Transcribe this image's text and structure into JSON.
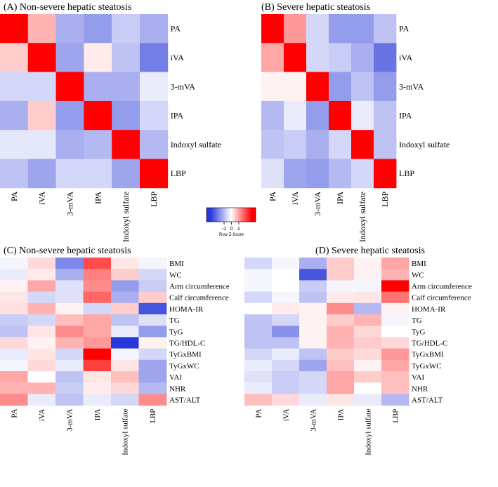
{
  "figure": {
    "color_key_label": "Row Z-Score",
    "color_key_ticks": [
      "-1",
      "0",
      "1"
    ],
    "scale": {
      "low": "#2838d8",
      "mid": "#ffffff",
      "high": "#ff0000"
    }
  },
  "chart_data": [
    {
      "type": "heatmap",
      "title": "(A) Non-severe hepatic steatosis",
      "columns": [
        "PA",
        "iVA",
        "3-mVA",
        "IPA",
        "Indoxyl sulfate",
        "LBP"
      ],
      "rows": [
        "PA",
        "iVA",
        "3-mVA",
        "IPA",
        "Indoxyl sulfate",
        "LBP"
      ],
      "values": [
        [
          1.0,
          0.3,
          -0.4,
          -0.5,
          -0.25,
          -0.4
        ],
        [
          0.2,
          1.0,
          -0.45,
          0.08,
          -0.3,
          -0.65
        ],
        [
          -0.2,
          -0.2,
          1.0,
          -0.4,
          -0.4,
          -0.1
        ],
        [
          -0.4,
          0.2,
          -0.5,
          1.0,
          -0.5,
          -0.2
        ],
        [
          -0.12,
          -0.12,
          -0.4,
          -0.35,
          1.0,
          -0.35
        ],
        [
          -0.3,
          -0.45,
          -0.2,
          -0.2,
          -0.45,
          1.0
        ]
      ],
      "xlim": [
        -1,
        1
      ]
    },
    {
      "type": "heatmap",
      "title": "(B) Severe hepatic steatosis",
      "columns": [
        "PA",
        "iVA",
        "3-mVA",
        "IPA",
        "Indoxyl sulfate",
        "LBP"
      ],
      "rows": [
        "PA",
        "iVA",
        "3-mVA",
        "IPA",
        "Indoxyl sulfate",
        "LBP"
      ],
      "values": [
        [
          1.0,
          0.4,
          -0.2,
          -0.5,
          -0.5,
          -0.3
        ],
        [
          0.35,
          1.0,
          -0.2,
          -0.25,
          -0.4,
          -0.7
        ],
        [
          0.05,
          0.05,
          1.0,
          -0.5,
          -0.3,
          -0.5
        ],
        [
          -0.35,
          -0.1,
          -0.5,
          1.0,
          -0.1,
          -0.3
        ],
        [
          -0.3,
          -0.25,
          -0.4,
          -0.2,
          1.0,
          -0.3
        ],
        [
          -0.15,
          -0.45,
          -0.5,
          -0.35,
          -0.2,
          1.0
        ]
      ],
      "xlim": [
        -1,
        1
      ]
    },
    {
      "type": "heatmap",
      "title": "(C) Non-severe hepatic steatosis",
      "columns": [
        "PA",
        "iVA",
        "3-mVA",
        "IPA",
        "Indoxyl sulfate",
        "LBP"
      ],
      "rows": [
        "BMI",
        "WC",
        "Arm circumference",
        "Calf circumference",
        "HOMA-IR",
        "TG",
        "TyG",
        "TG/HDL-C",
        "TyGxBMI",
        "TyGxWC",
        "VAI",
        "NHR",
        "AST/ALT"
      ],
      "values": [
        [
          -0.05,
          0.15,
          -0.6,
          0.7,
          0.1,
          -0.05
        ],
        [
          -0.1,
          0.08,
          -0.4,
          0.5,
          0.2,
          -0.2
        ],
        [
          0.05,
          0.35,
          -0.15,
          0.45,
          -0.5,
          -0.25
        ],
        [
          0.1,
          -0.2,
          -0.15,
          0.6,
          -0.4,
          0.2
        ],
        [
          0.12,
          0.3,
          0.05,
          -0.2,
          0.2,
          -0.85
        ],
        [
          -0.25,
          -0.2,
          0.25,
          0.35,
          -0.3,
          -0.15
        ],
        [
          -0.3,
          0.1,
          0.45,
          0.35,
          -0.1,
          -0.5
        ],
        [
          0.15,
          0.05,
          0.3,
          0.4,
          -1.0,
          0.05
        ],
        [
          -0.1,
          0.1,
          -0.2,
          1.0,
          -0.05,
          -0.2
        ],
        [
          -0.05,
          0.15,
          -0.1,
          0.75,
          0.1,
          -0.45
        ],
        [
          0.35,
          0.0,
          -0.3,
          0.1,
          0.25,
          -0.45
        ],
        [
          0.3,
          0.3,
          -0.25,
          0.08,
          0.15,
          -0.35
        ],
        [
          0.45,
          -0.1,
          -0.3,
          -0.1,
          -0.2,
          0.45
        ]
      ],
      "xlim": [
        -1,
        1
      ]
    },
    {
      "type": "heatmap",
      "title": "(D) Severe hepatic steatosis",
      "columns": [
        "PA",
        "iVA",
        "3-mVA",
        "IPA",
        "Indoxyl sulfate",
        "LBP"
      ],
      "rows": [
        "BMI",
        "WC",
        "Arm circumference",
        "Calf circumference",
        "HOMA-IR",
        "TG",
        "TyG",
        "TG/HDL-C",
        "TyGxBMI",
        "TyGxWC",
        "VAI",
        "NHR",
        "AST/ALT"
      ],
      "values": [
        [
          -0.2,
          -0.05,
          -0.4,
          0.2,
          0.05,
          0.35
        ],
        [
          -0.05,
          0.0,
          -0.85,
          0.2,
          0.05,
          0.3
        ],
        [
          -0.05,
          0.0,
          -0.25,
          -0.05,
          -0.05,
          1.0
        ],
        [
          -0.2,
          -0.05,
          -0.3,
          0.08,
          0.1,
          0.55
        ],
        [
          0.0,
          0.08,
          0.05,
          0.45,
          -0.35,
          0.05
        ],
        [
          -0.3,
          -0.2,
          0.05,
          0.2,
          0.3,
          -0.05
        ],
        [
          -0.3,
          -0.55,
          0.05,
          0.3,
          0.15,
          0.0
        ],
        [
          -0.3,
          -0.3,
          0.05,
          0.3,
          0.2,
          0.15
        ],
        [
          -0.2,
          -0.1,
          -0.3,
          0.2,
          0.15,
          0.4
        ],
        [
          -0.1,
          -0.2,
          -0.45,
          0.25,
          0.05,
          0.35
        ],
        [
          -0.15,
          -0.25,
          -0.2,
          0.35,
          0.2,
          0.25
        ],
        [
          -0.1,
          -0.25,
          -0.2,
          0.35,
          0.0,
          0.25
        ],
        [
          0.25,
          0.15,
          -0.1,
          0.1,
          -0.1,
          -0.35
        ]
      ],
      "xlim": [
        -1,
        1
      ]
    }
  ]
}
